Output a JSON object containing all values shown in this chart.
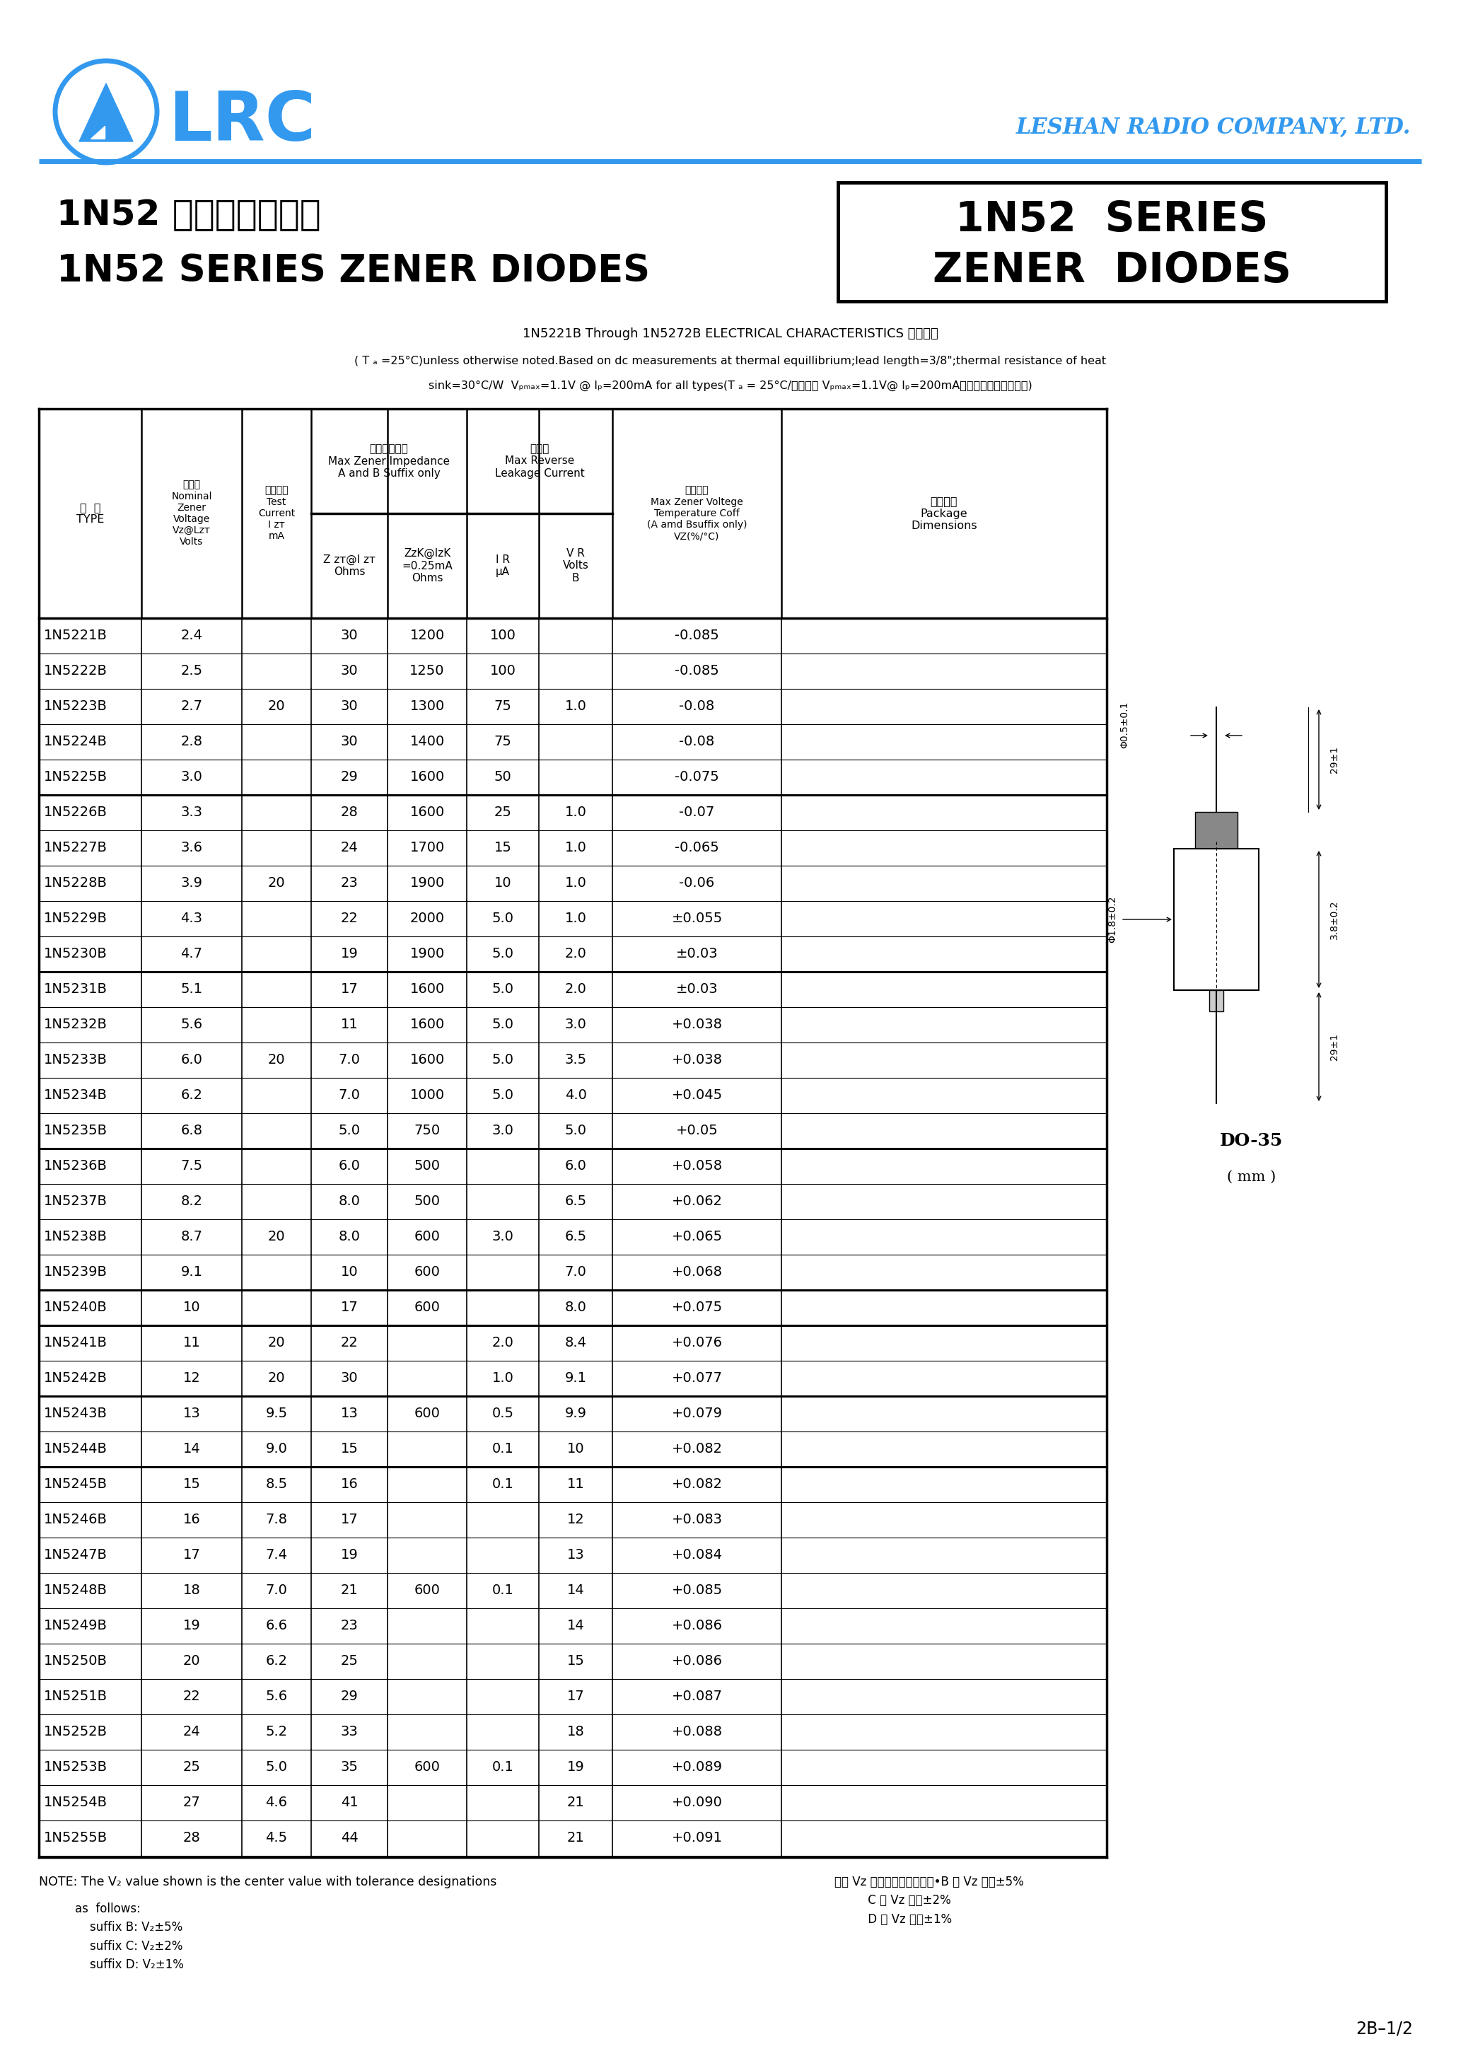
{
  "page_bg": "#ffffff",
  "lrc_color": "#3399ee",
  "table_data": [
    [
      "1N5221B",
      "2.4",
      "",
      "30",
      "1200",
      "100",
      "",
      "-0.085"
    ],
    [
      "1N5222B",
      "2.5",
      "",
      "30",
      "1250",
      "100",
      "",
      "-0.085"
    ],
    [
      "1N5223B",
      "2.7",
      "20",
      "30",
      "1300",
      "75",
      "1.0",
      "-0.08"
    ],
    [
      "1N5224B",
      "2.8",
      "",
      "30",
      "1400",
      "75",
      "",
      "-0.08"
    ],
    [
      "1N5225B",
      "3.0",
      "",
      "29",
      "1600",
      "50",
      "",
      "-0.075"
    ],
    [
      "1N5226B",
      "3.3",
      "",
      "28",
      "1600",
      "25",
      "1.0",
      "-0.07"
    ],
    [
      "1N5227B",
      "3.6",
      "",
      "24",
      "1700",
      "15",
      "1.0",
      "-0.065"
    ],
    [
      "1N5228B",
      "3.9",
      "20",
      "23",
      "1900",
      "10",
      "1.0",
      "-0.06"
    ],
    [
      "1N5229B",
      "4.3",
      "",
      "22",
      "2000",
      "5.0",
      "1.0",
      "±0.055"
    ],
    [
      "1N5230B",
      "4.7",
      "",
      "19",
      "1900",
      "5.0",
      "2.0",
      "±0.03"
    ],
    [
      "1N5231B",
      "5.1",
      "",
      "17",
      "1600",
      "5.0",
      "2.0",
      "±0.03"
    ],
    [
      "1N5232B",
      "5.6",
      "",
      "11",
      "1600",
      "5.0",
      "3.0",
      "+0.038"
    ],
    [
      "1N5233B",
      "6.0",
      "20",
      "7.0",
      "1600",
      "5.0",
      "3.5",
      "+0.038"
    ],
    [
      "1N5234B",
      "6.2",
      "",
      "7.0",
      "1000",
      "5.0",
      "4.0",
      "+0.045"
    ],
    [
      "1N5235B",
      "6.8",
      "",
      "5.0",
      "750",
      "3.0",
      "5.0",
      "+0.05"
    ],
    [
      "1N5236B",
      "7.5",
      "",
      "6.0",
      "500",
      "",
      "6.0",
      "+0.058"
    ],
    [
      "1N5237B",
      "8.2",
      "",
      "8.0",
      "500",
      "",
      "6.5",
      "+0.062"
    ],
    [
      "1N5238B",
      "8.7",
      "20",
      "8.0",
      "600",
      "3.0",
      "6.5",
      "+0.065"
    ],
    [
      "1N5239B",
      "9.1",
      "",
      "10",
      "600",
      "",
      "7.0",
      "+0.068"
    ],
    [
      "1N5240B",
      "10",
      "",
      "17",
      "600",
      "",
      "8.0",
      "+0.075"
    ],
    [
      "1N5241B",
      "11",
      "20",
      "22",
      "",
      "2.0",
      "8.4",
      "+0.076"
    ],
    [
      "1N5242B",
      "12",
      "20",
      "30",
      "",
      "1.0",
      "9.1",
      "+0.077"
    ],
    [
      "1N5243B",
      "13",
      "9.5",
      "13",
      "600",
      "0.5",
      "9.9",
      "+0.079"
    ],
    [
      "1N5244B",
      "14",
      "9.0",
      "15",
      "",
      "0.1",
      "10",
      "+0.082"
    ],
    [
      "1N5245B",
      "15",
      "8.5",
      "16",
      "",
      "0.1",
      "11",
      "+0.082"
    ],
    [
      "1N5246B",
      "16",
      "7.8",
      "17",
      "",
      "",
      "12",
      "+0.083"
    ],
    [
      "1N5247B",
      "17",
      "7.4",
      "19",
      "",
      "",
      "13",
      "+0.084"
    ],
    [
      "1N5248B",
      "18",
      "7.0",
      "21",
      "600",
      "0.1",
      "14",
      "+0.085"
    ],
    [
      "1N5249B",
      "19",
      "6.6",
      "23",
      "",
      "",
      "14",
      "+0.086"
    ],
    [
      "1N5250B",
      "20",
      "6.2",
      "25",
      "",
      "",
      "15",
      "+0.086"
    ],
    [
      "1N5251B",
      "22",
      "5.6",
      "29",
      "",
      "",
      "17",
      "+0.087"
    ],
    [
      "1N5252B",
      "24",
      "5.2",
      "33",
      "",
      "",
      "18",
      "+0.088"
    ],
    [
      "1N5253B",
      "25",
      "5.0",
      "35",
      "600",
      "0.1",
      "19",
      "+0.089"
    ],
    [
      "1N5254B",
      "27",
      "4.6",
      "41",
      "",
      "",
      "21",
      "+0.090"
    ],
    [
      "1N5255B",
      "28",
      "4.5",
      "44",
      "",
      "",
      "21",
      "+0.091"
    ]
  ],
  "group_separators": [
    4,
    9,
    14,
    18,
    19,
    21,
    23
  ],
  "page_num": "2B–1/2"
}
